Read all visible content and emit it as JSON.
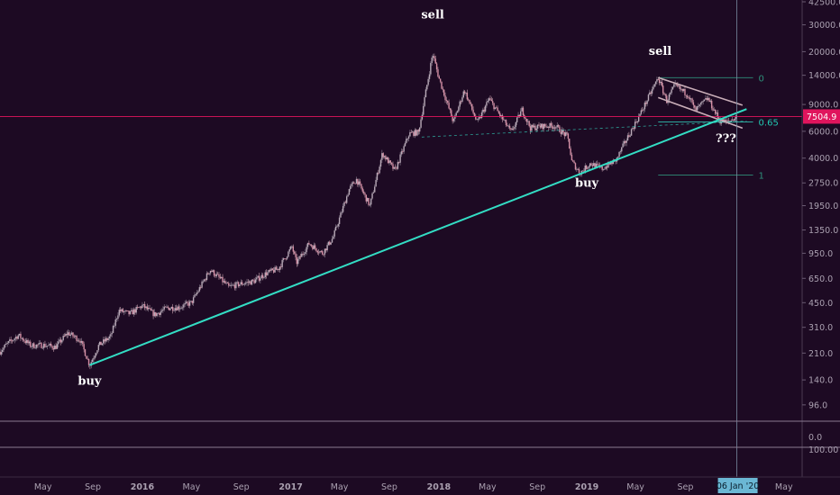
{
  "chart_data": {
    "type": "candlestick",
    "title": "",
    "y_scale": "log",
    "ylim": [
      75,
      42500
    ],
    "y_ticks": [
      "42500.0",
      "30000.0",
      "20000.0",
      "14000.0",
      "9000.0",
      "6000.0",
      "4000.0",
      "2750.0",
      "1950.0",
      "1350.0",
      "950.0",
      "650.0",
      "450.0",
      "310.0",
      "210.0",
      "140.0",
      "96.0"
    ],
    "x_ticks": [
      "May",
      "Sep",
      "2016",
      "May",
      "Sep",
      "2017",
      "May",
      "Sep",
      "2018",
      "May",
      "Sep",
      "2019",
      "May",
      "Sep",
      "May"
    ],
    "x_tick_dates": [
      "2015-05-01",
      "2015-09-01",
      "2016-01-01",
      "2016-05-01",
      "2016-09-01",
      "2017-01-01",
      "2017-05-01",
      "2017-09-01",
      "2018-01-01",
      "2018-05-01",
      "2018-09-01",
      "2019-01-01",
      "2019-05-01",
      "2019-09-01",
      "2020-05-01"
    ],
    "x_range": [
      "2015-01-15",
      "2020-06-15"
    ],
    "price_path": [
      [
        "2015-01-15",
        215
      ],
      [
        "2015-02-01",
        240
      ],
      [
        "2015-03-01",
        275
      ],
      [
        "2015-04-01",
        235
      ],
      [
        "2015-05-01",
        237
      ],
      [
        "2015-06-01",
        230
      ],
      [
        "2015-07-01",
        285
      ],
      [
        "2015-08-01",
        255
      ],
      [
        "2015-08-24",
        175
      ],
      [
        "2015-09-15",
        235
      ],
      [
        "2015-10-15",
        270
      ],
      [
        "2015-11-04",
        400
      ],
      [
        "2015-12-01",
        380
      ],
      [
        "2016-01-01",
        430
      ],
      [
        "2016-02-01",
        375
      ],
      [
        "2016-03-01",
        415
      ],
      [
        "2016-04-01",
        420
      ],
      [
        "2016-05-01",
        450
      ],
      [
        "2016-06-16",
        740
      ],
      [
        "2016-07-10",
        650
      ],
      [
        "2016-08-01",
        570
      ],
      [
        "2016-09-01",
        600
      ],
      [
        "2016-10-01",
        620
      ],
      [
        "2016-11-01",
        700
      ],
      [
        "2016-12-01",
        750
      ],
      [
        "2017-01-04",
        1050
      ],
      [
        "2017-01-15",
        820
      ],
      [
        "2017-02-15",
        1100
      ],
      [
        "2017-03-20",
        950
      ],
      [
        "2017-04-15",
        1200
      ],
      [
        "2017-05-25",
        2500
      ],
      [
        "2017-06-12",
        2900
      ],
      [
        "2017-07-15",
        1950
      ],
      [
        "2017-08-15",
        4300
      ],
      [
        "2017-09-15",
        3300
      ],
      [
        "2017-10-20",
        5800
      ],
      [
        "2017-11-12",
        5900
      ],
      [
        "2017-12-17",
        19500
      ],
      [
        "2018-01-01",
        13500
      ],
      [
        "2018-02-06",
        6900
      ],
      [
        "2018-03-05",
        11200
      ],
      [
        "2018-04-06",
        6800
      ],
      [
        "2018-05-05",
        9800
      ],
      [
        "2018-06-29",
        5900
      ],
      [
        "2018-07-25",
        8300
      ],
      [
        "2018-08-15",
        6300
      ],
      [
        "2018-09-15",
        6500
      ],
      [
        "2018-10-15",
        6500
      ],
      [
        "2018-11-15",
        5500
      ],
      [
        "2018-11-25",
        3800
      ],
      [
        "2018-12-15",
        3200
      ],
      [
        "2019-01-10",
        3700
      ],
      [
        "2019-02-07",
        3400
      ],
      [
        "2019-03-15",
        3900
      ],
      [
        "2019-04-02",
        4900
      ],
      [
        "2019-05-15",
        8000
      ],
      [
        "2019-06-26",
        13500
      ],
      [
        "2019-07-17",
        9500
      ],
      [
        "2019-08-06",
        12000
      ],
      [
        "2019-09-10",
        10300
      ],
      [
        "2019-09-25",
        8200
      ],
      [
        "2019-10-26",
        9900
      ],
      [
        "2019-11-25",
        7000
      ],
      [
        "2019-12-15",
        6900
      ],
      [
        "2020-01-06",
        7500
      ]
    ],
    "last_price": "7504.9",
    "annotations": [
      {
        "text": "buy",
        "date": "2015-08-24",
        "price": 130
      },
      {
        "text": "sell",
        "date": "2017-12-17",
        "price": 33000
      },
      {
        "text": "sell",
        "date": "2019-07-01",
        "price": 19000
      },
      {
        "text": "buy",
        "date": "2019-01-01",
        "price": 2600
      },
      {
        "text": "???",
        "date": "2019-12-10",
        "price": 5100
      }
    ],
    "trend_line": {
      "from": [
        "2015-08-24",
        175
      ],
      "to": [
        "2020-01-30",
        8400
      ]
    },
    "support_line": {
      "from": [
        "2017-11-20",
        5500
      ],
      "to": [
        "2020-01-30",
        7000
      ]
    },
    "channel": {
      "upper": {
        "from": [
          "2019-06-26",
          13500
        ],
        "to": [
          "2020-01-20",
          8900
        ]
      },
      "lower": {
        "from": [
          "2019-06-26",
          10000
        ],
        "to": [
          "2020-01-20",
          6300
        ]
      }
    },
    "fib_levels": [
      {
        "label": "0",
        "price": 13500
      },
      {
        "label": "0.65",
        "price": 6900
      },
      {
        "label": "1",
        "price": 3100
      }
    ],
    "fib_range": [
      "2019-06-26",
      "2020-02-15"
    ],
    "price_line": 7504.9,
    "crosshair_date": "2020-01-06",
    "crosshair_label": "06 Jan '20",
    "indicator_1_tick": "0.0",
    "indicator_2_tick": "100.00",
    "colors": {
      "background": "#1d0a23",
      "trend": "#33ddc4",
      "price_line": "#e0155d",
      "candle": "#b9aab8",
      "channel": "#c9aeb8",
      "fib": "#2e8f7a",
      "crosshair": "#7a8aa0",
      "date_badge": "#6bb7d4"
    }
  }
}
